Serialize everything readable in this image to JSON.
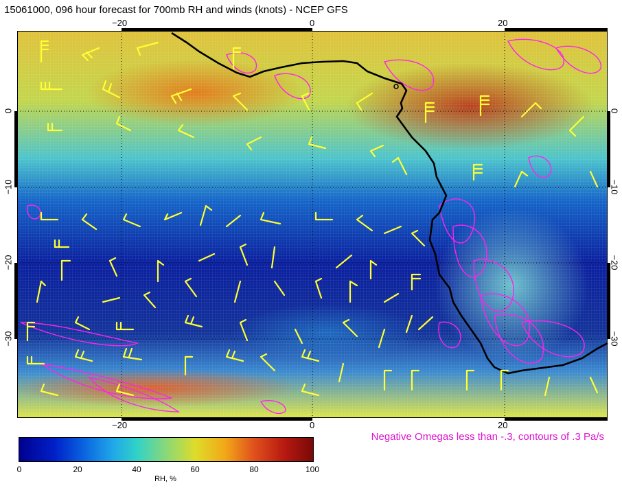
{
  "title": "15061000, 096 hour forecast for 700mb RH and winds (knots) - NCEP GFS",
  "map": {
    "lon_ticks_top": [
      "−20",
      "0",
      "20"
    ],
    "lon_ticks_bottom": [
      "−20",
      "0",
      "20"
    ],
    "lat_ticks_left": [
      "0",
      "−10",
      "−20",
      "−30"
    ],
    "lat_ticks_right": [
      "0",
      "−10",
      "−20",
      "−30"
    ],
    "coastline_color": "#000000",
    "wind_barb_color": "#ffff33",
    "omega_contour_color": "#ff22ee",
    "gridlines": "dotted"
  },
  "legend": {
    "omega_note": "Negative Omegas less than -.3, contours of .3 Pa/s"
  },
  "colorbar": {
    "label": "RH, %",
    "ticks": [
      "0",
      "20",
      "40",
      "60",
      "80",
      "100"
    ],
    "colors": [
      "#00008f",
      "#0a64e0",
      "#30d2c8",
      "#dedc2a",
      "#e0501c",
      "#7a0808"
    ]
  }
}
